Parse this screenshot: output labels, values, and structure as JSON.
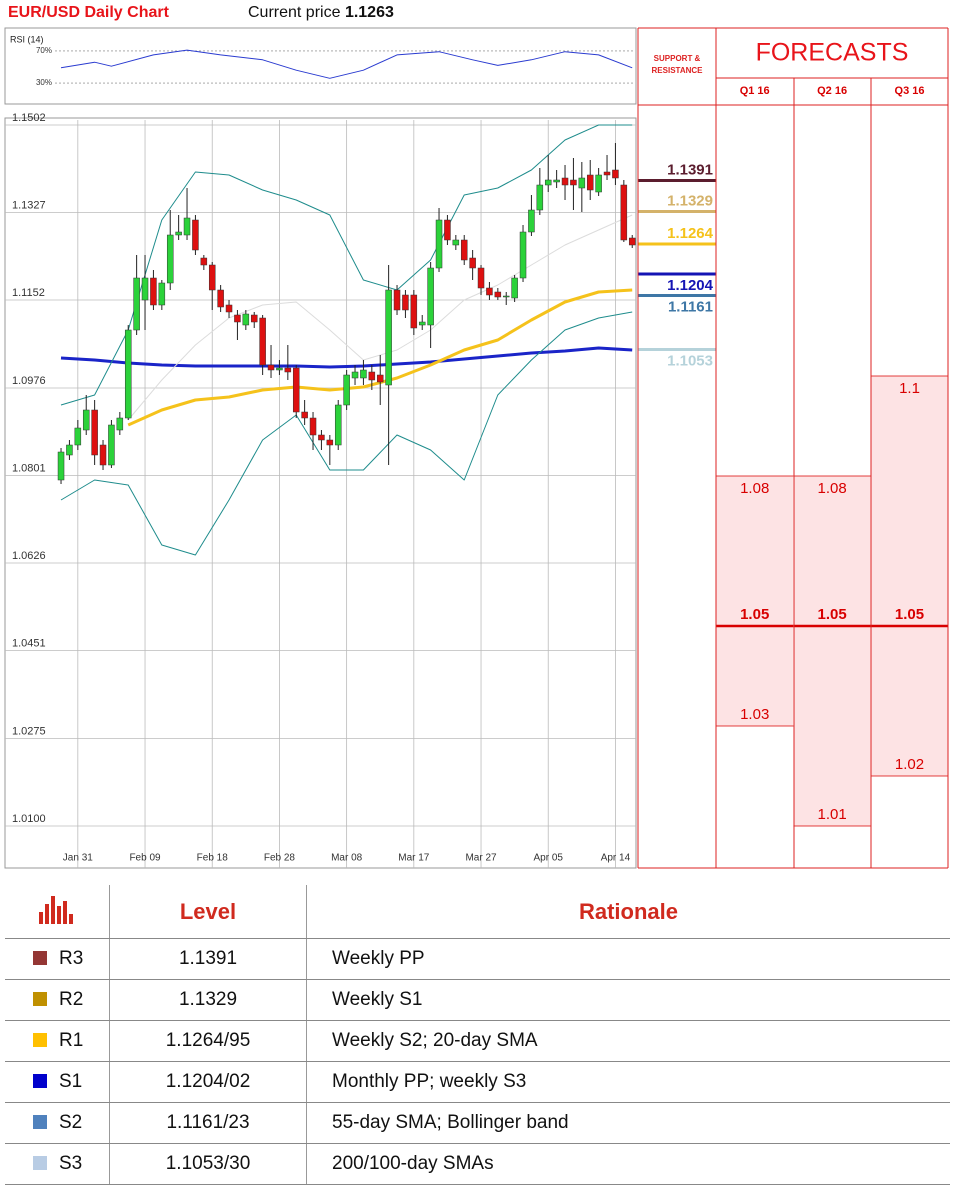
{
  "header": {
    "title": "EUR/USD Daily Chart",
    "price_label": "Current price",
    "price": 1.1263
  },
  "chart_data": [
    {
      "type": "candlestick",
      "categories": [
        null,
        null,
        "Jan 31",
        null,
        null,
        null,
        null,
        null,
        null,
        null,
        "Feb 09",
        null,
        null,
        null,
        null,
        null,
        null,
        null,
        "Feb 18",
        null,
        null,
        null,
        null,
        null,
        null,
        null,
        "Feb 28",
        null,
        null,
        null,
        null,
        null,
        null,
        null,
        "Mar 08",
        null,
        null,
        null,
        null,
        null,
        null,
        null,
        "Mar 17",
        null,
        null,
        null,
        null,
        null,
        null,
        null,
        "Mar 27",
        null,
        null,
        null,
        null,
        null,
        null,
        null,
        "Apr 05",
        null,
        null,
        null,
        null,
        null,
        null,
        null,
        "Apr 14",
        null,
        null
      ],
      "open": [
        1.0792,
        1.0842,
        1.0862,
        1.0892,
        1.0932,
        1.0862,
        1.0822,
        1.0892,
        1.0916,
        1.1092,
        1.1152,
        1.1196,
        1.1142,
        1.1186,
        1.1282,
        1.1282,
        1.1312,
        1.1236,
        1.1222,
        1.1172,
        1.1142,
        1.1122,
        1.1102,
        1.1122,
        1.1116,
        1.1022,
        1.1012,
        1.1016,
        1.1016,
        1.0928,
        1.0916,
        1.0882,
        1.0872,
        1.0862,
        1.0942,
        1.0996,
        1.0996,
        1.1008,
        1.1002,
        1.0982,
        1.1172,
        1.1162,
        1.1162,
        1.1102,
        1.1102,
        1.1216,
        1.1312,
        1.1262,
        1.1272,
        1.1236,
        1.1216,
        1.1176,
        1.1168,
        1.1158,
        1.1156,
        1.1196,
        1.1288,
        1.1332,
        1.1382,
        1.1388,
        1.1396,
        1.1392,
        1.1376,
        1.1402,
        1.1368,
        1.1408,
        1.1412,
        1.1382,
        1.1276
      ],
      "high": [
        1.0856,
        1.0872,
        1.0912,
        1.0962,
        1.0952,
        1.0872,
        1.0912,
        1.0928,
        1.1102,
        1.1242,
        1.1242,
        1.1212,
        1.1192,
        1.1332,
        1.1322,
        1.1376,
        1.1322,
        1.1242,
        1.1228,
        1.1182,
        1.1152,
        1.1132,
        1.1132,
        1.1128,
        1.1122,
        1.1062,
        1.1032,
        1.1062,
        1.1022,
        1.0952,
        1.0928,
        1.0892,
        1.0882,
        1.0952,
        1.1012,
        1.1022,
        1.1032,
        1.1022,
        1.1042,
        1.1222,
        1.1182,
        1.1172,
        1.1172,
        1.1122,
        1.1228,
        1.1336,
        1.1322,
        1.1282,
        1.1282,
        1.1252,
        1.1222,
        1.1188,
        1.1176,
        1.1168,
        1.1202,
        1.1302,
        1.1362,
        1.1416,
        1.1442,
        1.1412,
        1.1422,
        1.1436,
        1.1428,
        1.1432,
        1.1416,
        1.1442,
        1.1466,
        1.1392,
        1.1282
      ],
      "low": [
        1.0784,
        1.0832,
        1.0852,
        1.0882,
        1.0822,
        1.0812,
        1.0816,
        1.0882,
        1.0912,
        1.1082,
        1.1092,
        1.1132,
        1.1132,
        1.1172,
        1.1272,
        1.1272,
        1.1242,
        1.1212,
        1.1132,
        1.1128,
        1.1116,
        1.1072,
        1.1092,
        1.1096,
        1.1002,
        1.0996,
        1.1002,
        1.0992,
        1.0916,
        1.0902,
        1.0852,
        1.0852,
        1.0822,
        1.0852,
        1.0932,
        1.0982,
        1.0982,
        1.0972,
        1.0942,
        1.0822,
        1.1122,
        1.1116,
        1.1082,
        1.1092,
        1.1056,
        1.1208,
        1.1262,
        1.1252,
        1.1222,
        1.1192,
        1.1162,
        1.1152,
        1.1152,
        1.1142,
        1.1148,
        1.1188,
        1.128,
        1.1322,
        1.1368,
        1.1376,
        1.1352,
        1.1332,
        1.1328,
        1.1352,
        1.136,
        1.1392,
        1.1382,
        1.1268,
        1.1256
      ],
      "close": [
        1.0848,
        1.0862,
        1.0896,
        1.0932,
        1.0842,
        1.0822,
        1.0902,
        1.0916,
        1.1092,
        1.1196,
        1.1196,
        1.1142,
        1.1186,
        1.1282,
        1.1288,
        1.1316,
        1.1252,
        1.1222,
        1.1172,
        1.1138,
        1.1128,
        1.1108,
        1.1124,
        1.1108,
        1.1022,
        1.1012,
        1.1016,
        1.1008,
        1.0928,
        1.0916,
        1.0882,
        1.0872,
        1.0862,
        1.0942,
        1.1002,
        1.1008,
        1.1012,
        1.0992,
        1.0988,
        1.1172,
        1.1132,
        1.1132,
        1.1096,
        1.1108,
        1.1216,
        1.1312,
        1.1272,
        1.1272,
        1.1232,
        1.1216,
        1.1176,
        1.1162,
        1.1158,
        1.116,
        1.1196,
        1.1288,
        1.1332,
        1.1382,
        1.1392,
        1.1392,
        1.1382,
        1.1382,
        1.1396,
        1.1372,
        1.1402,
        1.1402,
        1.1396,
        1.1272,
        1.1262
      ],
      "up_color": "#2bd23a",
      "down_color": "#dd1010",
      "overlays": [
        {
          "color": "#1a24c8",
          "width": 3,
          "x": [
            0,
            4,
            8,
            12,
            16,
            20,
            24,
            28,
            32,
            36,
            40,
            44,
            48,
            52,
            56,
            60,
            64,
            68
          ],
          "values": [
            1.1036,
            1.1032,
            1.1026,
            1.1022,
            1.102,
            1.102,
            1.102,
            1.102,
            1.1018,
            1.102,
            1.1024,
            1.1028,
            1.1034,
            1.104,
            1.1046,
            1.105,
            1.1056,
            1.1052
          ]
        },
        {
          "color": "#f5c21b",
          "width": 3,
          "x": [
            0,
            4,
            8,
            12,
            16,
            20,
            24,
            28,
            32,
            36,
            40,
            44,
            48,
            52,
            56,
            60,
            64,
            68
          ],
          "values": [
            null,
            null,
            1.0902,
            1.0932,
            1.0952,
            1.0958,
            1.0972,
            1.0978,
            1.0972,
            1.0978,
            1.0996,
            1.1022,
            1.1052,
            1.1072,
            1.1112,
            1.1148,
            1.1168,
            1.1172
          ]
        },
        {
          "color": "#dcdcdc",
          "width": 1,
          "x": [
            0,
            4,
            8,
            12,
            16,
            20,
            24,
            28,
            32,
            36,
            40,
            44,
            48,
            52,
            56,
            60,
            64,
            68
          ],
          "values": [
            null,
            null,
            1.0912,
            1.0992,
            1.1062,
            1.1116,
            1.1142,
            1.1148,
            1.1092,
            1.1032,
            1.1052,
            1.1092,
            1.1152,
            1.1182,
            1.1222,
            1.1262,
            1.1292,
            1.1322
          ]
        },
        {
          "color": "#1e8c8c",
          "width": 1,
          "x": [
            0,
            4,
            8,
            12,
            16,
            20,
            24,
            28,
            32,
            36,
            40,
            44,
            48,
            52,
            56,
            60,
            64,
            68
          ],
          "values": [
            1.0942,
            1.0962,
            1.1092,
            1.1312,
            1.1408,
            1.1402,
            1.1372,
            1.1352,
            1.1322,
            1.1192,
            1.1172,
            1.1232,
            1.1362,
            1.1376,
            1.1412,
            1.1472,
            1.1502,
            1.1502
          ]
        },
        {
          "color": "#1e8c8c",
          "width": 1,
          "x": [
            0,
            4,
            8,
            12,
            16,
            20,
            24,
            28,
            32,
            36,
            40,
            44,
            48,
            52,
            56,
            60,
            64,
            68
          ],
          "values": [
            1.0752,
            1.0792,
            1.0782,
            1.0662,
            1.0642,
            1.0752,
            1.0872,
            1.0922,
            1.0812,
            1.0812,
            1.0882,
            1.0852,
            1.0792,
            1.0962,
            1.1032,
            1.1092,
            1.1116,
            1.1128
          ]
        }
      ],
      "xlim": [
        -6.67,
        68.33
      ],
      "ylim": [
        1.0016,
        1.1512
      ],
      "yticks": [
        1.1502,
        1.1327,
        1.1152,
        1.0976,
        1.0801,
        1.0626,
        1.0451,
        1.0275,
        {
          "value": 1.01,
          "label": "1.0100"
        }
      ],
      "grid": true
    },
    {
      "type": "line",
      "title": "RSI (14)",
      "color": "#2a3bd0",
      "x": [
        0,
        4,
        6,
        11,
        15,
        19,
        24,
        28,
        32,
        36,
        40,
        45,
        49,
        52,
        56,
        60,
        64,
        68
      ],
      "values": [
        49,
        56,
        51,
        65,
        71,
        65,
        59,
        46,
        36,
        46,
        65,
        69,
        59,
        52,
        59,
        69,
        65,
        49
      ],
      "xlim": [
        -6.67,
        68.33
      ],
      "ylim": [
        4,
        96
      ],
      "yticks": [
        {
          "value": 70,
          "label": "70%"
        },
        {
          "value": 30,
          "label": "30%"
        }
      ]
    }
  ],
  "support_resistance": {
    "title": [
      "SUPPORT &",
      "RESISTANCE"
    ],
    "levels": [
      {
        "value": 1.1391,
        "color": "#5b1d2e"
      },
      {
        "value": 1.1329,
        "color": "#d4b26a"
      },
      {
        "value": 1.1264,
        "color": "#f5c21b"
      },
      {
        "value": 1.1204,
        "color": "#1414b4"
      },
      {
        "value": 1.1161,
        "color": "#3e77a6"
      },
      {
        "value": 1.1053,
        "color": "#b5d2da"
      }
    ]
  },
  "forecasts": {
    "title": "FORECASTS",
    "color": "#d80000",
    "fill": "#fde3e4",
    "periods": [
      {
        "name": "Q1 16",
        "high": 1.08,
        "base": 1.05,
        "low": 1.03
      },
      {
        "name": "Q2 16",
        "high": 1.08,
        "base": 1.05,
        "low": 1.01
      },
      {
        "name": "Q3 16",
        "high": 1.1,
        "base": 1.05,
        "low": 1.02
      }
    ]
  },
  "table": {
    "headers": [
      "Level",
      "Rationale"
    ],
    "rows": [
      {
        "name": "R3",
        "color": "#943634",
        "level": "1.1391",
        "rationale": "Weekly PP"
      },
      {
        "name": "R2",
        "color": "#c09000",
        "level": "1.1329",
        "rationale": "Weekly S1"
      },
      {
        "name": "R1",
        "color": "#ffc000",
        "level": "1.1264/95",
        "rationale": "Weekly S2; 20-day SMA"
      },
      {
        "name": "S1",
        "color": "#0000cc",
        "level": "1.1204/02",
        "rationale": "Monthly PP; weekly S3"
      },
      {
        "name": "S2",
        "color": "#4f81bd",
        "level": "1.1161/23",
        "rationale": "55-day SMA; Bollinger band"
      },
      {
        "name": "S3",
        "color": "#b8cce4",
        "level": "1.1053/30",
        "rationale": "200/100-day SMAs"
      }
    ]
  }
}
